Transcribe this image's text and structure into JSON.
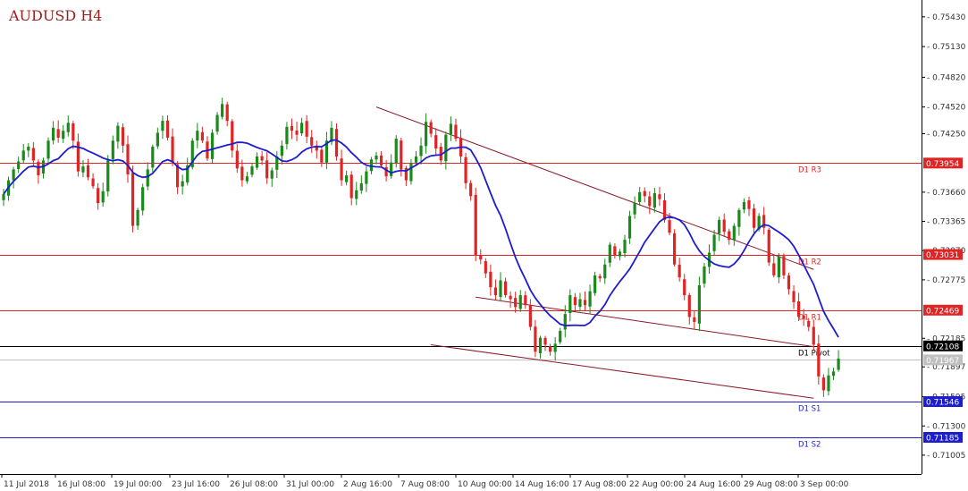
{
  "chart_data": {
    "type": "candlestick",
    "title": "AUDUSD H4",
    "colors": {
      "bull": "#1a8a1a",
      "bear": "#e02424",
      "ma": "#1c1cd0",
      "trendline": "#8b1a2b",
      "resistance": "#e02424",
      "support": "#1c1cd0",
      "pivot": "#000000",
      "current": "#c0c0c0"
    },
    "y_axis": {
      "range": [
        0.70815,
        0.756
      ],
      "ticks": [
        "0.75430",
        "0.75130",
        "0.74820",
        "0.74520",
        "0.74250",
        "0.73660",
        "0.73365",
        "0.73070",
        "0.72775",
        "0.72185",
        "0.71897",
        "0.71595",
        "0.71300",
        "0.71005"
      ]
    },
    "x_axis": {
      "labels": [
        "11 Jul 2018",
        "16 Jul 08:00",
        "19 Jul 00:00",
        "23 Jul 16:00",
        "26 Jul 08:00",
        "31 Jul 00:00",
        "2 Aug 16:00",
        "7 Aug 08:00",
        "10 Aug 00:00",
        "14 Aug 16:00",
        "17 Aug 08:00",
        "22 Aug 00:00",
        "24 Aug 16:00",
        "29 Aug 08:00",
        "3 Sep 00:00"
      ]
    },
    "levels": [
      {
        "name": "D1 R3",
        "value": 0.73954,
        "label": "0.73954",
        "kind": "resistance"
      },
      {
        "name": "D1 R2",
        "value": 0.73031,
        "label": "0.73031",
        "kind": "resistance"
      },
      {
        "name": "D1 R1",
        "value": 0.72469,
        "label": "0.72469",
        "kind": "resistance"
      },
      {
        "name": "D1 Pivot",
        "value": 0.72108,
        "label": "0.72108",
        "kind": "pivot"
      },
      {
        "name": "D1 S1",
        "value": 0.71546,
        "label": "0.71546",
        "kind": "support"
      },
      {
        "name": "D1 S2",
        "value": 0.71185,
        "label": "0.71185",
        "kind": "support"
      }
    ],
    "current_price": {
      "value": 0.71967,
      "label": "0.71967"
    },
    "trendlines": [
      {
        "name": "upper-channel",
        "start": [
          75,
          0.7452
        ],
        "end": [
          163,
          0.7288
        ]
      },
      {
        "name": "middle-channel",
        "start": [
          95,
          0.726
        ],
        "end": [
          163,
          0.721
        ]
      },
      {
        "name": "lower-channel",
        "start": [
          86,
          0.7212
        ],
        "end": [
          163,
          0.7158
        ]
      }
    ],
    "closes": [
      0.7364,
      0.7378,
      0.7389,
      0.7397,
      0.7408,
      0.7412,
      0.7398,
      0.7383,
      0.7398,
      0.7418,
      0.7431,
      0.7421,
      0.7428,
      0.7436,
      0.7418,
      0.7387,
      0.7392,
      0.7381,
      0.7372,
      0.7355,
      0.7367,
      0.7398,
      0.7418,
      0.7433,
      0.7413,
      0.7384,
      0.7332,
      0.7348,
      0.7371,
      0.7389,
      0.7412,
      0.7426,
      0.7438,
      0.7421,
      0.7396,
      0.7371,
      0.7377,
      0.7393,
      0.7418,
      0.7428,
      0.7418,
      0.74,
      0.7426,
      0.7444,
      0.7455,
      0.7438,
      0.7408,
      0.739,
      0.7378,
      0.7382,
      0.7392,
      0.7402,
      0.7398,
      0.738,
      0.7388,
      0.7402,
      0.7413,
      0.7432,
      0.7428,
      0.7424,
      0.7436,
      0.7422,
      0.7413,
      0.7408,
      0.7396,
      0.7418,
      0.7431,
      0.7402,
      0.7378,
      0.7383,
      0.736,
      0.7368,
      0.7375,
      0.7387,
      0.7399,
      0.7403,
      0.7393,
      0.7382,
      0.7396,
      0.742,
      0.7389,
      0.7378,
      0.7395,
      0.7402,
      0.7413,
      0.7437,
      0.7425,
      0.741,
      0.7398,
      0.7424,
      0.7435,
      0.742,
      0.7402,
      0.7375,
      0.7362,
      0.7302,
      0.7298,
      0.7284,
      0.727,
      0.7262,
      0.7277,
      0.7262,
      0.7258,
      0.725,
      0.7262,
      0.7252,
      0.723,
      0.7205,
      0.7219,
      0.7212,
      0.7205,
      0.7213,
      0.7226,
      0.7243,
      0.7262,
      0.7252,
      0.7258,
      0.7252,
      0.7266,
      0.7282,
      0.7279,
      0.7293,
      0.7313,
      0.7302,
      0.7306,
      0.7318,
      0.7342,
      0.7355,
      0.7366,
      0.7362,
      0.7352,
      0.7365,
      0.7359,
      0.7338,
      0.7325,
      0.7293,
      0.728,
      0.7262,
      0.724,
      0.7235,
      0.7272,
      0.7291,
      0.7305,
      0.7323,
      0.7338,
      0.7326,
      0.7318,
      0.7332,
      0.7348,
      0.7356,
      0.7349,
      0.733,
      0.7342,
      0.733,
      0.7295,
      0.7282,
      0.7301,
      0.7282,
      0.7268,
      0.7255,
      0.724,
      0.7238,
      0.723,
      0.7212,
      0.718,
      0.7166,
      0.7181,
      0.7185,
      0.7198
    ]
  }
}
